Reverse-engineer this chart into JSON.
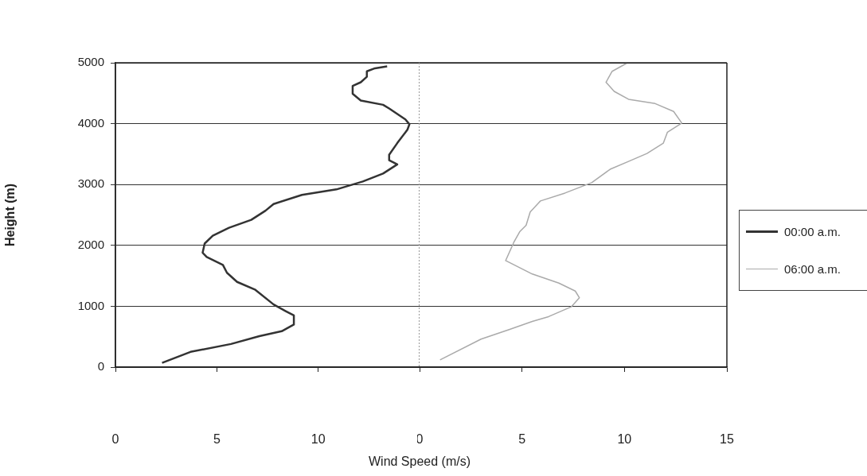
{
  "chart_data": [
    {
      "type": "line",
      "ylabel": "Height (m)",
      "xlabel": "Wind Speed (m/s)",
      "xlim": [
        0,
        15
      ],
      "xticks": [
        0,
        5,
        10
      ],
      "ylim": [
        0,
        5000
      ],
      "yticks": [
        0,
        1000,
        2000,
        3000,
        4000,
        5000
      ],
      "grid": "y",
      "legend": "right",
      "series": [
        {
          "name": "00:00 a.m.",
          "color": "#333333",
          "x": [
            2.3,
            3.7,
            5.7,
            7.1,
            8.2,
            8.8,
            8.8,
            8.4,
            7.8,
            6.9,
            6.0,
            5.5,
            5.3,
            4.5,
            4.3,
            4.4,
            4.8,
            5.6,
            6.7,
            7.4,
            7.8,
            9.2,
            10.9,
            12.2,
            13.2,
            13.9,
            13.5,
            13.5,
            13.9,
            14.4,
            14.5,
            14.3,
            13.5,
            13.2,
            12.1,
            11.7,
            11.7,
            12.1,
            12.4,
            12.4,
            12.8,
            13.4
          ],
          "values": [
            70,
            250,
            380,
            510,
            590,
            700,
            850,
            920,
            1030,
            1270,
            1400,
            1550,
            1680,
            1810,
            1880,
            2030,
            2160,
            2290,
            2420,
            2570,
            2680,
            2830,
            2920,
            3050,
            3180,
            3330,
            3400,
            3490,
            3680,
            3900,
            3990,
            4070,
            4250,
            4310,
            4380,
            4490,
            4620,
            4680,
            4770,
            4860,
            4910,
            4940
          ]
        }
      ]
    },
    {
      "type": "line",
      "xlim": [
        0,
        15
      ],
      "xticks": [
        0,
        5,
        10,
        15
      ],
      "ylim": [
        0,
        5000
      ],
      "yticks": [
        0,
        1000,
        2000,
        3000,
        4000,
        5000
      ],
      "grid": "y",
      "legend": "right",
      "tick_labels": "x",
      "series": [
        {
          "name": "06:00 a.m.",
          "color": "#aaaaaa",
          "x": [
            1.0,
            3.0,
            4.4,
            5.5,
            6.3,
            7.4,
            7.8,
            7.6,
            6.8,
            5.5,
            4.2,
            4.6,
            4.9,
            5.2,
            5.4,
            5.9,
            7.1,
            8.4,
            9.3,
            10.2,
            11.1,
            11.9,
            12.1,
            12.8,
            12.4,
            11.5,
            10.2,
            9.5,
            9.1,
            9.4,
            10.1
          ],
          "values": [
            120,
            460,
            620,
            750,
            830,
            990,
            1140,
            1250,
            1380,
            1530,
            1750,
            2050,
            2230,
            2330,
            2550,
            2730,
            2860,
            3030,
            3250,
            3380,
            3510,
            3680,
            3860,
            4010,
            4200,
            4330,
            4400,
            4530,
            4680,
            4860,
            4990
          ]
        }
      ]
    }
  ]
}
